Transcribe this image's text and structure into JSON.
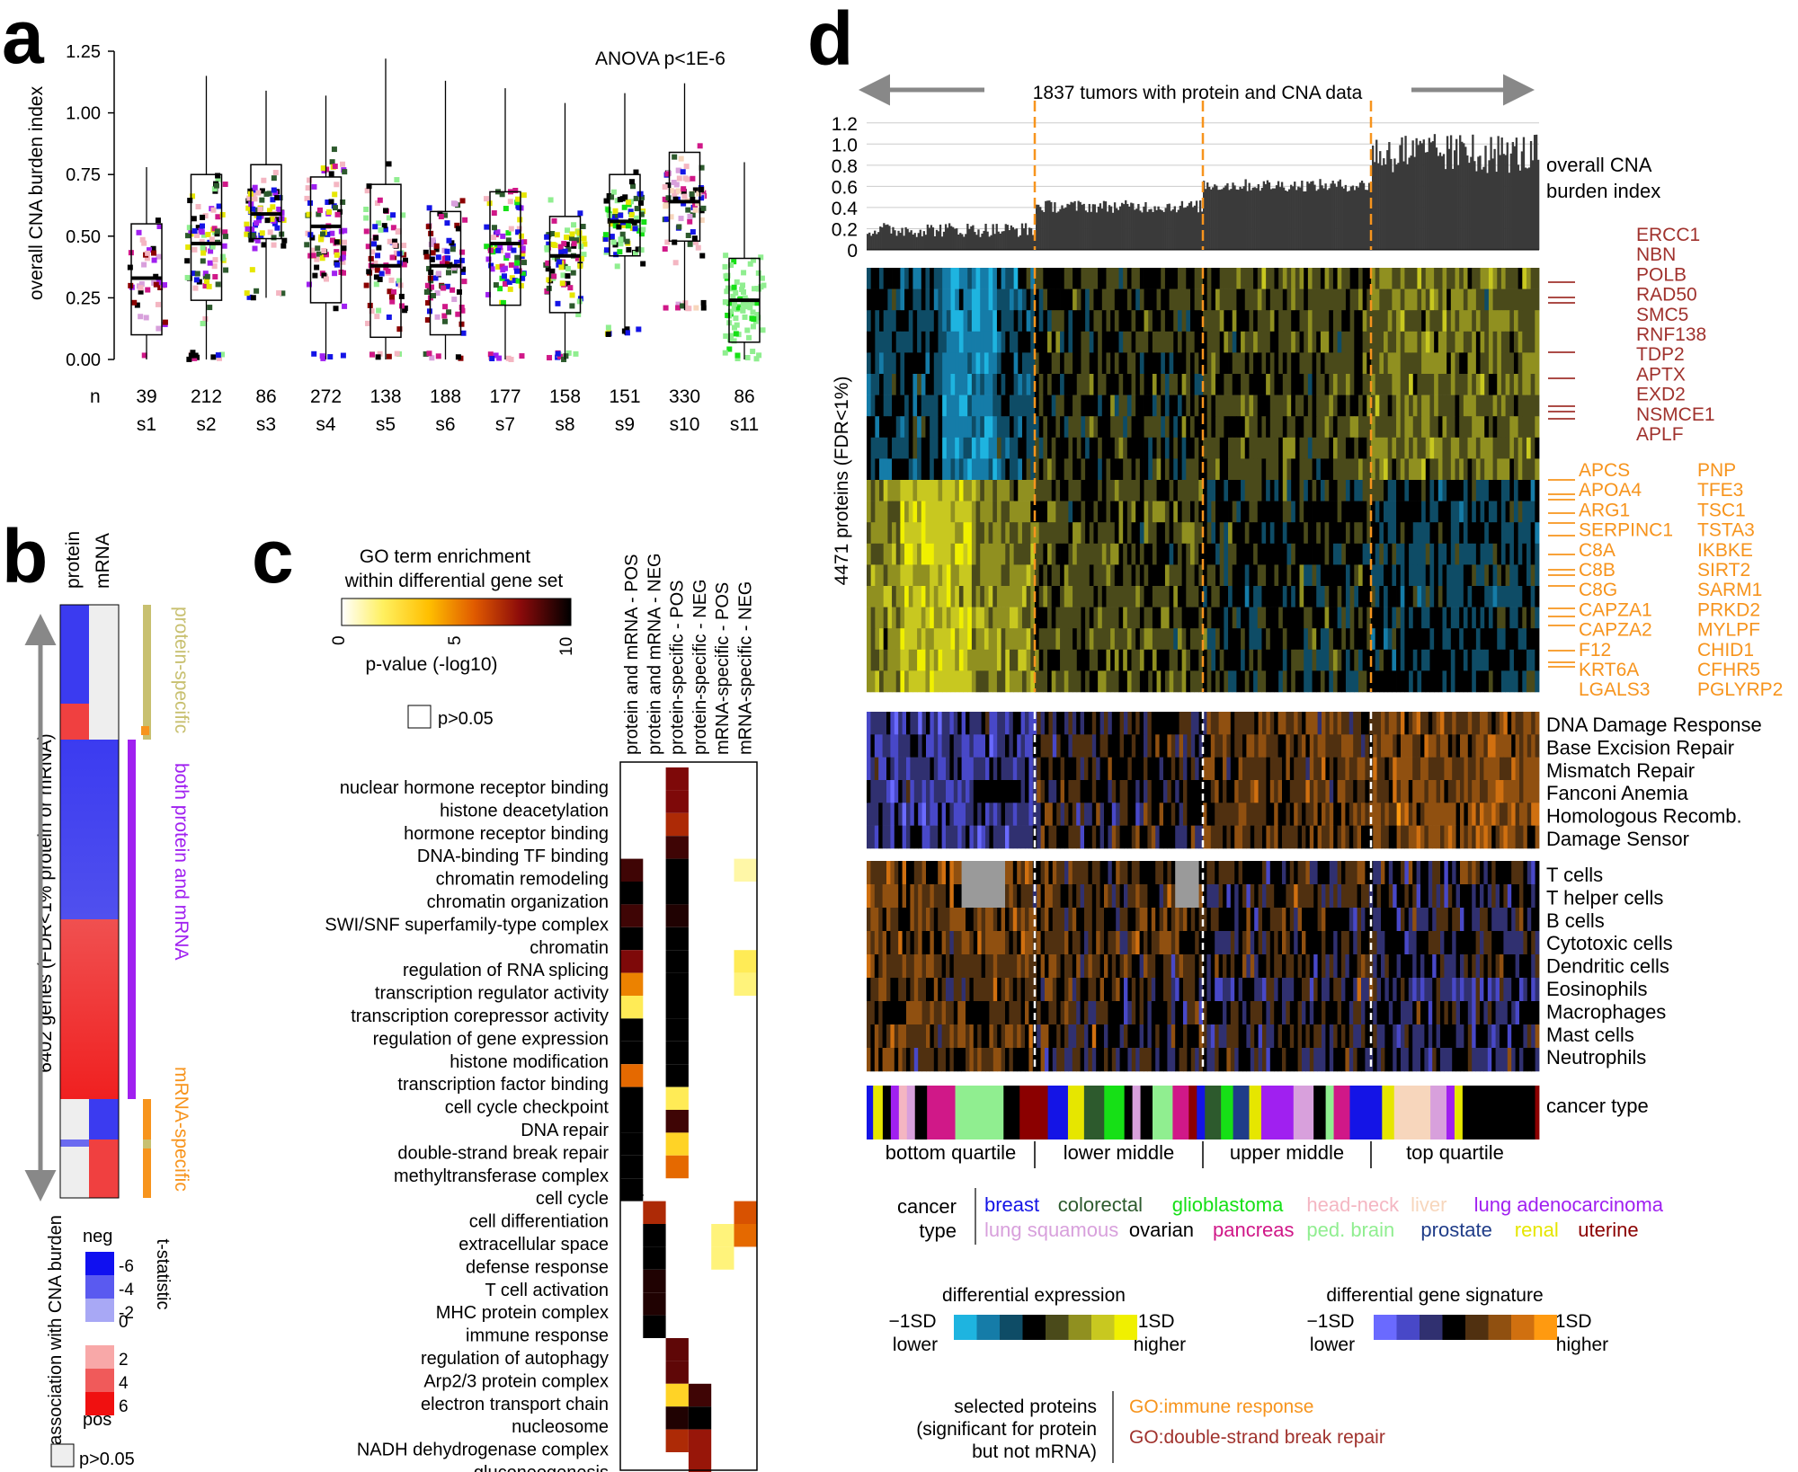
{
  "panel_letters": {
    "a": "a",
    "b": "b",
    "c": "c",
    "d": "d"
  },
  "colors": {
    "breast": "#1414e6",
    "colorectal": "#2d5a2d",
    "glioblastoma": "#16e016",
    "head_neck": "#f4b6c2",
    "liver": "#f7d6bc",
    "lung_adeno": "#a020f0",
    "lung_squamous": "#d8a0dc",
    "ovarian": "#000000",
    "pancreas": "#d01888",
    "ped_brain": "#90ee90",
    "prostate": "#1f3c88",
    "renal": "#e6e600",
    "uterine": "#8b0000",
    "neg": "#3b3bf0",
    "pos": "#f02828",
    "orange": "#f7941d",
    "dsb": "#a0322d",
    "purple": "#a020f0",
    "olive": "#c8c070"
  },
  "chart_data": [
    {
      "id": "a",
      "type": "box",
      "annotation": "ANOVA p<1E-6",
      "ylabel": "overall CNA burden index",
      "ylim": [
        0,
        1.25
      ],
      "yticks": [
        "0.00",
        "0.25",
        "0.50",
        "0.75",
        "1.00",
        "1.25"
      ],
      "n_label": "n",
      "categories": [
        "s1",
        "s2",
        "s3",
        "s4",
        "s5",
        "s6",
        "s7",
        "s8",
        "s9",
        "s10",
        "s11"
      ],
      "n": [
        "39",
        "212",
        "86",
        "272",
        "138",
        "188",
        "177",
        "158",
        "151",
        "330",
        "86"
      ],
      "boxes": [
        {
          "q1": 0.1,
          "median": 0.33,
          "q3": 0.55,
          "lo": 0.0,
          "hi": 0.78
        },
        {
          "q1": 0.24,
          "median": 0.47,
          "q3": 0.75,
          "lo": 0.0,
          "hi": 1.15
        },
        {
          "q1": 0.49,
          "median": 0.59,
          "q3": 0.79,
          "lo": 0.25,
          "hi": 1.09
        },
        {
          "q1": 0.23,
          "median": 0.54,
          "q3": 0.74,
          "lo": 0.0,
          "hi": 1.07
        },
        {
          "q1": 0.09,
          "median": 0.38,
          "q3": 0.71,
          "lo": 0.0,
          "hi": 1.22
        },
        {
          "q1": 0.1,
          "median": 0.38,
          "q3": 0.6,
          "lo": 0.0,
          "hi": 1.13
        },
        {
          "q1": 0.22,
          "median": 0.47,
          "q3": 0.68,
          "lo": 0.0,
          "hi": 1.1
        },
        {
          "q1": 0.19,
          "median": 0.42,
          "q3": 0.58,
          "lo": 0.0,
          "hi": 1.04
        },
        {
          "q1": 0.42,
          "median": 0.56,
          "q3": 0.75,
          "lo": 0.1,
          "hi": 1.08
        },
        {
          "q1": 0.48,
          "median": 0.64,
          "q3": 0.84,
          "lo": 0.2,
          "hi": 1.12
        },
        {
          "q1": 0.07,
          "median": 0.24,
          "q3": 0.41,
          "lo": 0.0,
          "hi": 0.8
        }
      ]
    },
    {
      "id": "b",
      "type": "heatmap",
      "columns": [
        "protein",
        "mRNA"
      ],
      "ylabel": "6402 genes (FDR<1% protein or mRNA)",
      "groups": [
        "protein-specific",
        "both protein and mRNA",
        "mRNA-specific"
      ],
      "legend_title": "association with CNA burden",
      "legend_stat": "t-statistic",
      "legend_neg": "neg",
      "legend_pos": "pos",
      "legend_values": [
        "-6",
        "-4",
        "-2",
        "0",
        "2",
        "4",
        "6"
      ],
      "legend_na": "p>0.05"
    },
    {
      "id": "c",
      "type": "heatmap",
      "title_line1": "GO term enrichment",
      "title_line2": "within differential gene set",
      "scale_label": "p-value (-log10)",
      "scale_ticks": [
        "0",
        "5",
        "10"
      ],
      "na_label": "p>0.05",
      "columns": [
        "protein and mRNA - POS",
        "protein and mRNA - NEG",
        "protein-specific - POS",
        "protein-specific - NEG",
        "mRNA-specific - POS",
        "mRNA-specific - NEG"
      ],
      "rows": [
        "nuclear hormone receptor binding",
        "histone deacetylation",
        "hormone receptor binding",
        "DNA-binding TF binding",
        "chromatin remodeling",
        "chromatin organization",
        "SWI/SNF superfamily-type complex",
        "chromatin",
        "regulation of RNA splicing",
        "transcription regulator activity",
        "transcription corepressor activity",
        "regulation of gene expression",
        "histone modification",
        "transcription factor binding",
        "cell cycle checkpoint",
        "DNA repair",
        "double-strand break repair",
        "methyltransferase complex",
        "cell cycle",
        "cell differentiation",
        "extracellular space",
        "defense response",
        "T cell activation",
        "MHC protein complex",
        "immune response",
        "regulation of autophagy",
        "Arp2/3 protein complex",
        "electron transport chain",
        "nucleosome",
        "NADH dehydrogenase complex",
        "gluconeogenesis"
      ],
      "values": [
        [
          null,
          null,
          8,
          null,
          null,
          null
        ],
        [
          null,
          null,
          8,
          null,
          null,
          null
        ],
        [
          null,
          null,
          7,
          null,
          null,
          null
        ],
        [
          null,
          null,
          9,
          null,
          null,
          null
        ],
        [
          9,
          null,
          10,
          null,
          null,
          1
        ],
        [
          10,
          null,
          10,
          null,
          null,
          null
        ],
        [
          9,
          null,
          9.5,
          null,
          null,
          null
        ],
        [
          10,
          null,
          10,
          null,
          null,
          null
        ],
        [
          8,
          null,
          10,
          null,
          null,
          2
        ],
        [
          5,
          null,
          10,
          null,
          null,
          1.5
        ],
        [
          2,
          null,
          10,
          null,
          null,
          null
        ],
        [
          10,
          null,
          10,
          null,
          null,
          null
        ],
        [
          10,
          null,
          10,
          null,
          null,
          null
        ],
        [
          5.5,
          null,
          10,
          null,
          null,
          null
        ],
        [
          10,
          null,
          2,
          null,
          null,
          null
        ],
        [
          10,
          null,
          9,
          null,
          null,
          null
        ],
        [
          10,
          null,
          3,
          null,
          null,
          null
        ],
        [
          10,
          null,
          5.5,
          null,
          null,
          null
        ],
        [
          10,
          null,
          null,
          null,
          null,
          null
        ],
        [
          null,
          7,
          null,
          null,
          null,
          6
        ],
        [
          null,
          10,
          null,
          null,
          1.5,
          5.5
        ],
        [
          null,
          10,
          null,
          null,
          1.5,
          null
        ],
        [
          null,
          9.5,
          null,
          null,
          null,
          null
        ],
        [
          null,
          9.5,
          null,
          null,
          null,
          null
        ],
        [
          null,
          10,
          null,
          null,
          null,
          null
        ],
        [
          null,
          null,
          8.5,
          null,
          null,
          null
        ],
        [
          null,
          null,
          8.5,
          null,
          null,
          null
        ],
        [
          null,
          null,
          3,
          9,
          null,
          null
        ],
        [
          null,
          null,
          9.5,
          10,
          null,
          null
        ],
        [
          null,
          null,
          7,
          7.5,
          null,
          null
        ],
        [
          null,
          null,
          null,
          7.5,
          null,
          null
        ]
      ]
    },
    {
      "id": "d",
      "type": "heatmap",
      "arrow_label": "1837 tumors with protein and CNA data",
      "bar_label_1": "overall CNA",
      "bar_label_2": "burden index",
      "bar_yticks": [
        "0",
        "0.2",
        "0.4",
        "0.6",
        "0.8",
        "1.0",
        "1.2"
      ],
      "bar_ylim": [
        0,
        1.3
      ],
      "quartile_levels": [
        0.2,
        0.45,
        0.65,
        1.0
      ],
      "protein_label": "4471 proteins (FDR<1%)",
      "dsb_genes": [
        "ERCC1",
        "NBN",
        "POLB",
        "RAD50",
        "SMC5",
        "RNF138",
        "TDP2",
        "APTX",
        "EXD2",
        "NSMCE1",
        "APLF"
      ],
      "immune_genes_col1": [
        "APCS",
        "APOA4",
        "ARG1",
        "SERPINC1",
        "C8A",
        "C8B",
        "C8G",
        "CAPZA1",
        "CAPZA2",
        "F12",
        "KRT6A",
        "LGALS3"
      ],
      "immune_genes_col2": [
        "PNP",
        "TFE3",
        "TSC1",
        "TSTA3",
        "IKBKE",
        "SIRT2",
        "SARM1",
        "PRKD2",
        "MYLPF",
        "CHID1",
        "CFHR5",
        "PGLYRP2"
      ],
      "dna_pathways": [
        "DNA Damage Response",
        "Base Excision Repair",
        "Mismatch Repair",
        "Fanconi Anemia",
        "Homologous Recomb.",
        "Damage Sensor"
      ],
      "immune_cells": [
        "T cells",
        "T helper cells",
        "B cells",
        "Cytotoxic cells",
        "Dendritic cells",
        "Eosinophils",
        "Macrophages",
        "Mast cells",
        "Neutrophils"
      ],
      "cancer_type_label": "cancer type",
      "quartiles": [
        "bottom quartile",
        "lower middle",
        "upper middle",
        "top quartile"
      ],
      "legend_cancer_title_1": "cancer",
      "legend_cancer_title_2": "type",
      "cancer_legend_row1": [
        {
          "name": "breast",
          "color": "#1414e6"
        },
        {
          "name": "colorectal",
          "color": "#2d5a2d"
        },
        {
          "name": "glioblastoma",
          "color": "#16e016"
        },
        {
          "name": "head-neck",
          "color": "#f4b6c2"
        },
        {
          "name": "liver",
          "color": "#f7d6bc"
        },
        {
          "name": "lung adenocarcinoma",
          "color": "#a020f0"
        }
      ],
      "cancer_legend_row2": [
        {
          "name": "lung squamous",
          "color": "#d8a0dc"
        },
        {
          "name": "ovarian",
          "color": "#000000"
        },
        {
          "name": "pancreas",
          "color": "#d01888"
        },
        {
          "name": "ped. brain",
          "color": "#90ee90"
        },
        {
          "name": "prostate",
          "color": "#1f3c88"
        },
        {
          "name": "renal",
          "color": "#e6e600"
        },
        {
          "name": "uterine",
          "color": "#8b0000"
        }
      ],
      "diff_expr_title": "differential expression",
      "diff_sig_title": "differential gene signature",
      "minus_label": "−1SD",
      "plus_label": "+1SD",
      "lower_label": "lower",
      "higher_label": "higher",
      "diff_expr_colors": [
        "#1eb4e0",
        "#157ca8",
        "#0e4c66",
        "#000000",
        "#4a4a1a",
        "#909020",
        "#c8c820",
        "#f0f000"
      ],
      "diff_sig_colors": [
        "#6a6aff",
        "#4848c8",
        "#303070",
        "#000000",
        "#503010",
        "#905010",
        "#d07010",
        "#ff9a10"
      ],
      "selected_1": "selected proteins",
      "selected_2": "(significant for protein",
      "selected_3": "but not mRNA)",
      "go_immune": "GO:immune response",
      "go_dsb": "GO:double-strand break repair"
    }
  ]
}
